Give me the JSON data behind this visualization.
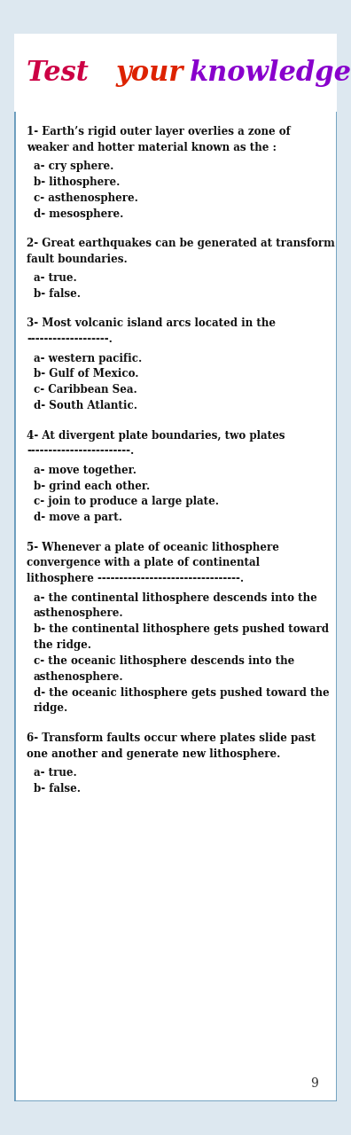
{
  "bg_color": "#ffffff",
  "border_color": "#6699bb",
  "page_bg": "#dde8f0",
  "header_bg": "#ffffff",
  "text_color": "#111111",
  "questions": [
    {
      "q": "1- Earth’s rigid outer layer overlies a zone of weaker and hotter material known as the :",
      "options": [
        "a- cry sphere.",
        "b- lithosphere.",
        "c- asthenosphere.",
        "d- mesosphere."
      ]
    },
    {
      "q": "2- Great earthquakes can be generated at transform fault boundaries.",
      "options": [
        "a- true.",
        "b- false."
      ]
    },
    {
      "q": "3- Most volcanic island arcs located in the -------------------.",
      "options": [
        "a- western pacific.",
        "b- Gulf of Mexico.",
        "c- Caribbean Sea.",
        "d- South Atlantic."
      ]
    },
    {
      "q": "4- At divergent plate boundaries, two plates ------------------------.",
      "options": [
        "a- move together.",
        "b- grind each other.",
        "c- join to produce a large plate.",
        "d- move a part."
      ]
    },
    {
      "q": "5- Whenever a plate of oceanic lithosphere convergence with a plate of continental lithosphere ---------------------------------.",
      "options": [
        "a- the continental lithosphere descends into the asthenosphere.",
        "b- the continental lithosphere gets pushed toward the ridge.",
        "c- the oceanic lithosphere descends into the asthenosphere.",
        "d- the oceanic lithosphere gets pushed toward the ridge."
      ]
    },
    {
      "q": "6- Transform faults occur where plates slide past one another and generate new lithosphere.",
      "options": [
        "a- true.",
        "b- false."
      ]
    }
  ],
  "title_parts": [
    {
      "text": "Test ",
      "color": "#cc0044"
    },
    {
      "text": "your ",
      "color": "#dd2200"
    },
    {
      "text": "knowledge",
      "color": "#8800cc"
    }
  ],
  "page_number": "9"
}
